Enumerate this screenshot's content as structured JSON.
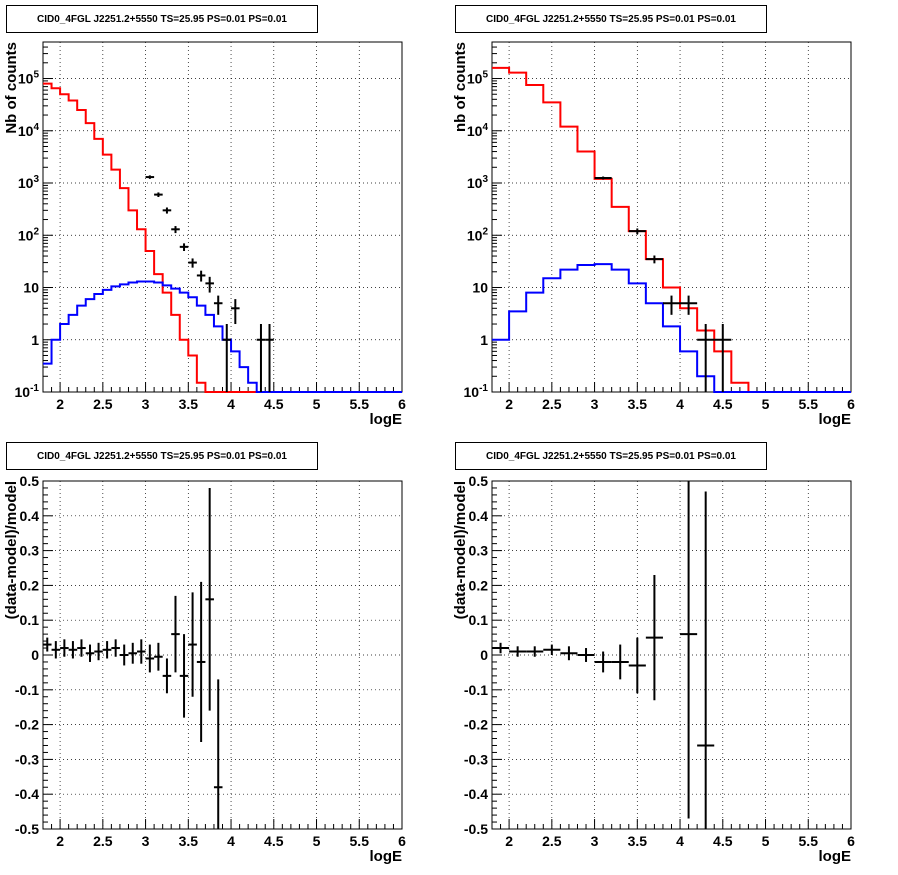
{
  "panels": [
    {
      "id": "p0",
      "title": "CID0_4FGL J2251.2+5550 TS=25.95 PS=0.01 PS=0.01",
      "type": "step-log",
      "xlabel": "logE",
      "ylabel": "Nb of counts",
      "xlim": [
        1.8,
        6
      ],
      "ylim": [
        0.1,
        500000
      ],
      "log_y": true,
      "grid": true,
      "x_ticks": [
        "2",
        "2.5",
        "3",
        "3.5",
        "4",
        "4.5",
        "5",
        "5.5",
        "6"
      ],
      "y_ticks": [
        "10^-1",
        "1",
        "10",
        "10^2",
        "10^3",
        "10^4",
        "10^5"
      ],
      "chart_data": {
        "type": "line",
        "bin_width": 0.1,
        "bin_start": 1.8,
        "series": [
          {
            "color": "#ff0000",
            "values": [
              80000,
              65000,
              50000,
              38000,
              25000,
              14000,
              7000,
              3500,
              1800,
              800,
              300,
              130,
              50,
              18,
              8,
              3,
              1.0,
              0.5,
              0.15,
              0.1,
              0.1,
              0.1,
              0.1,
              0.1,
              0.1,
              0.1,
              0.1,
              0.1,
              0.1,
              0.1,
              0.1,
              0.1,
              0.1,
              0.1,
              0.1,
              0.1,
              0.1,
              0.1,
              0.1,
              0.1,
              0.1,
              0.1
            ]
          },
          {
            "color": "#0000ff",
            "values": [
              0.35,
              1.0,
              2.0,
              3.0,
              4.5,
              6.0,
              7.5,
              9.0,
              10.5,
              11.5,
              12.5,
              13.0,
              13.0,
              12.5,
              11.0,
              9.5,
              8.0,
              6.5,
              4.5,
              3.0,
              1.8,
              1.0,
              0.6,
              0.3,
              0.15,
              0.1,
              0.1,
              0.1,
              0.1,
              0.1,
              0.1,
              0.1,
              0.1,
              0.1,
              0.1,
              0.1,
              0.1,
              0.1,
              0.1,
              0.1,
              0.1,
              0.1
            ]
          }
        ],
        "points": [
          {
            "x": 3.05,
            "y": 1300,
            "lo": 1200,
            "hi": 1400
          },
          {
            "x": 3.15,
            "y": 600,
            "lo": 540,
            "hi": 660
          },
          {
            "x": 3.25,
            "y": 300,
            "lo": 260,
            "hi": 340
          },
          {
            "x": 3.35,
            "y": 130,
            "lo": 110,
            "hi": 150
          },
          {
            "x": 3.45,
            "y": 60,
            "lo": 50,
            "hi": 70
          },
          {
            "x": 3.55,
            "y": 30,
            "lo": 24,
            "hi": 36
          },
          {
            "x": 3.65,
            "y": 17,
            "lo": 13,
            "hi": 21
          },
          {
            "x": 3.75,
            "y": 12,
            "lo": 8,
            "hi": 16
          },
          {
            "x": 3.85,
            "y": 5,
            "lo": 3,
            "hi": 7
          },
          {
            "x": 3.95,
            "y": 1,
            "lo": 0.1,
            "hi": 2
          },
          {
            "x": 4.05,
            "y": 4,
            "lo": 2,
            "hi": 6
          },
          {
            "x": 4.35,
            "y": 1,
            "lo": 0.1,
            "hi": 2
          },
          {
            "x": 4.45,
            "y": 1,
            "lo": 0.1,
            "hi": 2
          }
        ]
      }
    },
    {
      "id": "p1",
      "title": "CID0_4FGL J2251.2+5550 TS=25.95 PS=0.01 PS=0.01",
      "type": "step-log",
      "xlabel": "logE",
      "ylabel": "nb of counts",
      "xlim": [
        1.8,
        6
      ],
      "ylim": [
        0.1,
        500000
      ],
      "log_y": true,
      "grid": true,
      "x_ticks": [
        "2",
        "2.5",
        "3",
        "3.5",
        "4",
        "4.5",
        "5",
        "5.5",
        "6"
      ],
      "y_ticks": [
        "10^-1",
        "1",
        "10",
        "10^2",
        "10^3",
        "10^4",
        "10^5"
      ],
      "chart_data": {
        "type": "line",
        "bin_width": 0.2,
        "bin_start": 1.8,
        "series": [
          {
            "color": "#ff0000",
            "values": [
              160000,
              130000,
              75000,
              35000,
              12000,
              4000,
              1200,
              350,
              120,
              35,
              10,
              4,
              1.5,
              0.6,
              0.15,
              0.1,
              0.1,
              0.1,
              0.1,
              0.1,
              0.1
            ]
          },
          {
            "color": "#0000ff",
            "values": [
              1.0,
              3.5,
              8.0,
              15,
              22,
              27,
              28,
              22,
              12,
              5,
              1.8,
              0.6,
              0.2,
              0.1,
              0.1,
              0.1,
              0.1,
              0.1,
              0.1,
              0.1,
              0.1
            ]
          }
        ],
        "points": [
          {
            "x": 3.1,
            "y": 1250,
            "lo": 1170,
            "hi": 1330
          },
          {
            "x": 3.5,
            "y": 120,
            "lo": 105,
            "hi": 135
          },
          {
            "x": 3.7,
            "y": 35,
            "lo": 29,
            "hi": 41
          },
          {
            "x": 3.9,
            "y": 5,
            "lo": 3,
            "hi": 7
          },
          {
            "x": 4.1,
            "y": 5,
            "lo": 3,
            "hi": 7
          },
          {
            "x": 4.3,
            "y": 1,
            "lo": 0.1,
            "hi": 2
          },
          {
            "x": 4.5,
            "y": 1,
            "lo": 0.1,
            "hi": 2
          }
        ]
      }
    },
    {
      "id": "p2",
      "title": "CID0_4FGL J2251.2+5550 TS=25.95 PS=0.01 PS=0.01",
      "type": "residual",
      "xlabel": "logE",
      "ylabel": "(data-model)/model",
      "xlim": [
        1.8,
        6
      ],
      "ylim": [
        -0.5,
        0.5
      ],
      "grid": true,
      "x_ticks": [
        "2",
        "2.5",
        "3",
        "3.5",
        "4",
        "4.5",
        "5",
        "5.5",
        "6"
      ],
      "y_ticks": [
        "-0.5",
        "-0.4",
        "-0.3",
        "-0.2",
        "-0.1",
        "0",
        "0.1",
        "0.2",
        "0.3",
        "0.4",
        "0.5"
      ],
      "chart_data": {
        "type": "scatter",
        "bin_width": 0.1,
        "points": [
          {
            "x": 1.85,
            "y": 0.03,
            "err": 0.02
          },
          {
            "x": 1.95,
            "y": 0.015,
            "err": 0.025
          },
          {
            "x": 2.05,
            "y": 0.02,
            "err": 0.025
          },
          {
            "x": 2.15,
            "y": 0.015,
            "err": 0.025
          },
          {
            "x": 2.25,
            "y": 0.02,
            "err": 0.025
          },
          {
            "x": 2.35,
            "y": 0.005,
            "err": 0.025
          },
          {
            "x": 2.45,
            "y": 0.01,
            "err": 0.025
          },
          {
            "x": 2.55,
            "y": 0.015,
            "err": 0.025
          },
          {
            "x": 2.65,
            "y": 0.02,
            "err": 0.025
          },
          {
            "x": 2.75,
            "y": 0.0,
            "err": 0.03
          },
          {
            "x": 2.85,
            "y": 0.005,
            "err": 0.03
          },
          {
            "x": 2.95,
            "y": 0.01,
            "err": 0.035
          },
          {
            "x": 3.05,
            "y": -0.01,
            "err": 0.04
          },
          {
            "x": 3.15,
            "y": -0.005,
            "err": 0.04
          },
          {
            "x": 3.25,
            "y": -0.06,
            "err": 0.05
          },
          {
            "x": 3.35,
            "y": 0.06,
            "err": 0.11
          },
          {
            "x": 3.45,
            "y": -0.06,
            "err": 0.12
          },
          {
            "x": 3.55,
            "y": 0.03,
            "err": 0.15
          },
          {
            "x": 3.65,
            "y": -0.02,
            "err": 0.23
          },
          {
            "x": 3.75,
            "y": 0.16,
            "err": 0.32
          },
          {
            "x": 3.85,
            "y": -0.38,
            "err": 0.31
          }
        ]
      }
    },
    {
      "id": "p3",
      "title": "CID0_4FGL J2251.2+5550 TS=25.95 PS=0.01 PS=0.01",
      "type": "residual",
      "xlabel": "logE",
      "ylabel": "(data-model)/model",
      "xlim": [
        1.8,
        6
      ],
      "ylim": [
        -0.5,
        0.5
      ],
      "grid": true,
      "x_ticks": [
        "2",
        "2.5",
        "3",
        "3.5",
        "4",
        "4.5",
        "5",
        "5.5",
        "6"
      ],
      "y_ticks": [
        "-0.5",
        "-0.4",
        "-0.3",
        "-0.2",
        "-0.1",
        "0",
        "0.1",
        "0.2",
        "0.3",
        "0.4",
        "0.5"
      ],
      "chart_data": {
        "type": "scatter",
        "bin_width": 0.2,
        "points": [
          {
            "x": 1.9,
            "y": 0.02,
            "err": 0.015
          },
          {
            "x": 2.1,
            "y": 0.01,
            "err": 0.015
          },
          {
            "x": 2.3,
            "y": 0.01,
            "err": 0.015
          },
          {
            "x": 2.5,
            "y": 0.015,
            "err": 0.015
          },
          {
            "x": 2.7,
            "y": 0.005,
            "err": 0.02
          },
          {
            "x": 2.9,
            "y": 0.0,
            "err": 0.02
          },
          {
            "x": 3.1,
            "y": -0.02,
            "err": 0.03
          },
          {
            "x": 3.3,
            "y": -0.02,
            "err": 0.05
          },
          {
            "x": 3.5,
            "y": -0.03,
            "err": 0.08
          },
          {
            "x": 3.7,
            "y": 0.05,
            "err": 0.18
          },
          {
            "x": 4.1,
            "y": 0.06,
            "err": 0.53
          },
          {
            "x": 4.3,
            "y": -0.26,
            "err": 0.73
          }
        ]
      }
    }
  ]
}
